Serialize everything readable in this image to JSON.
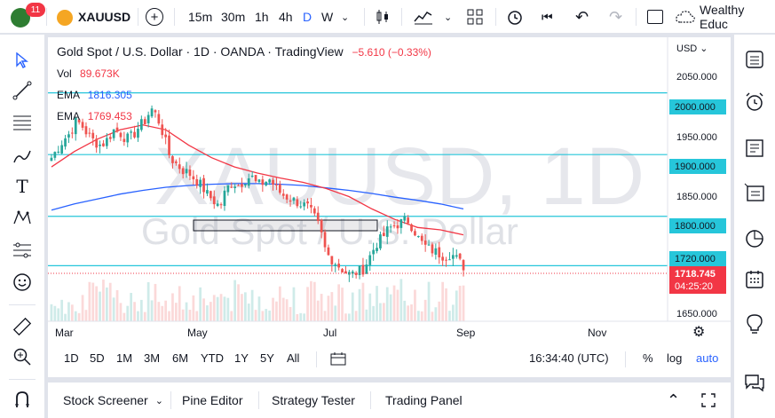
{
  "topbar": {
    "badge_count": "11",
    "symbol": "XAUUSD",
    "intervals": [
      "15m",
      "30m",
      "1h",
      "4h",
      "D",
      "W"
    ],
    "active_interval": "D",
    "layout_name": "Wealthy Educ"
  },
  "legend": {
    "title": "Gold Spot / U.S. Dollar · 1D · OANDA · TradingView",
    "change": "−5.610 (−0.33%)",
    "vol_label": "Vol",
    "vol_value": "89.673K",
    "ema1_label": "EMA",
    "ema1_value": "1816.305",
    "ema2_label": "EMA",
    "ema2_value": "1769.453"
  },
  "watermark": {
    "symbol": "XAUUSD, 1D",
    "name": "Gold Spot / U.S. Dollar"
  },
  "price_axis": {
    "currency": "USD",
    "ticks": [
      "2050.000",
      "1950.000",
      "1850.000",
      "1650.000"
    ],
    "levels": [
      "2000.000",
      "1900.000",
      "1800.000",
      "1720.000"
    ],
    "last_price": "1718.745",
    "countdown": "04:25:20"
  },
  "time_axis": {
    "ticks": [
      "Mar",
      "May",
      "Jul",
      "Sep",
      "Nov"
    ]
  },
  "periods": {
    "buttons": [
      "1D",
      "5D",
      "1M",
      "3M",
      "6M",
      "YTD",
      "1Y",
      "5Y",
      "All"
    ],
    "clock": "16:34:40 (UTC)",
    "percent": "%",
    "log": "log",
    "auto": "auto"
  },
  "bottom_tabs": [
    "Stock Screener",
    "Pine Editor",
    "Strategy Tester",
    "Trading Panel"
  ],
  "chart_data": {
    "type": "candlestick",
    "symbol": "XAUUSD",
    "ylim": [
      1630,
      2090
    ],
    "x_ticks": [
      "Mar",
      "May",
      "Jul",
      "Sep",
      "Nov"
    ],
    "horizontal_levels": [
      2000,
      1900,
      1800,
      1720
    ],
    "close_path": [
      1895,
      1910,
      1925,
      1935,
      1955,
      1945,
      1930,
      1920,
      1915,
      1925,
      1940,
      1935,
      1925,
      1930,
      1945,
      1955,
      1975,
      1960,
      1930,
      1895,
      1885,
      1875,
      1870,
      1860,
      1850,
      1835,
      1825,
      1815,
      1845,
      1855,
      1850,
      1860,
      1865,
      1850,
      1855,
      1860,
      1845,
      1835,
      1830,
      1825,
      1820,
      1815,
      1800,
      1780,
      1740,
      1730,
      1720,
      1710,
      1705,
      1710,
      1715,
      1735,
      1755,
      1765,
      1780,
      1785,
      1790,
      1795,
      1780,
      1760,
      1750,
      1745,
      1740,
      1735,
      1740,
      1730,
      1719
    ],
    "ema_slow": [
      1810,
      1820,
      1828,
      1836,
      1842,
      1847,
      1850,
      1852,
      1853,
      1853,
      1852,
      1850,
      1846,
      1842,
      1837,
      1831,
      1826,
      1820,
      1812
    ],
    "ema_fast": [
      1880,
      1905,
      1925,
      1940,
      1948,
      1940,
      1915,
      1895,
      1880,
      1870,
      1862,
      1855,
      1845,
      1832,
      1812,
      1795,
      1782,
      1778,
      1770
    ]
  }
}
